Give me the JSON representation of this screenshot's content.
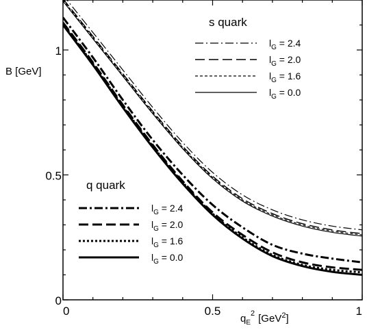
{
  "chart_data": {
    "type": "line",
    "xlabel": "q",
    "xlabel_sub": "E",
    "xlabel_sup": "2",
    "xlabel_unit_open": "[GeV",
    "xlabel_unit_sup": "2",
    "xlabel_unit_close": "]",
    "ylabel": "B [GeV]",
    "xlim": [
      0,
      1
    ],
    "ylim": [
      0,
      1.2
    ],
    "x_ticks": [
      {
        "value": 0,
        "label": "0"
      },
      {
        "value": 0.5,
        "label": "0.5"
      },
      {
        "value": 1,
        "label": "1"
      }
    ],
    "y_ticks": [
      {
        "value": 0,
        "label": "0"
      },
      {
        "value": 0.5,
        "label": "0.5"
      },
      {
        "value": 1,
        "label": "1"
      }
    ],
    "grid": false,
    "x": [
      0,
      0.1,
      0.2,
      0.3,
      0.4,
      0.5,
      0.6,
      0.7,
      0.8,
      0.9,
      1.0
    ],
    "groups": [
      {
        "title": "s quark",
        "legend_position": "top-right",
        "series": [
          {
            "label_main": "l",
            "label_sub": "G",
            "label_value": " = 2.4",
            "dash": "12 4 2 4",
            "width": 1.2,
            "values": [
              1.22,
              1.07,
              0.92,
              0.77,
              0.63,
              0.51,
              0.42,
              0.36,
              0.32,
              0.295,
              0.28
            ]
          },
          {
            "label_main": "l",
            "label_sub": "G",
            "label_value": " = 2.0",
            "dash": "14 6",
            "width": 1.4,
            "values": [
              1.205,
              1.055,
              0.905,
              0.755,
              0.615,
              0.495,
              0.405,
              0.345,
              0.305,
              0.28,
              0.265
            ]
          },
          {
            "label_main": "l",
            "label_sub": "G",
            "label_value": " = 1.6",
            "dash": "4 3",
            "width": 1.2,
            "values": [
              1.2,
              1.05,
              0.9,
              0.75,
              0.61,
              0.49,
              0.4,
              0.34,
              0.3,
              0.275,
              0.26
            ]
          },
          {
            "label_main": "l",
            "label_sub": "G",
            "label_value": " = 0.0",
            "dash": "",
            "width": 1.2,
            "values": [
              1.195,
              1.045,
              0.895,
              0.745,
              0.605,
              0.485,
              0.395,
              0.335,
              0.295,
              0.27,
              0.255
            ]
          }
        ]
      },
      {
        "title": "q quark",
        "legend_position": "bottom-left",
        "series": [
          {
            "label_main": "l",
            "label_sub": "G",
            "label_value": " = 2.4",
            "dash": "12 4 3 4",
            "width": 3,
            "values": [
              1.13,
              0.97,
              0.8,
              0.64,
              0.5,
              0.38,
              0.29,
              0.22,
              0.185,
              0.165,
              0.15
            ]
          },
          {
            "label_main": "l",
            "label_sub": "G",
            "label_value": " = 2.0",
            "dash": "14 6",
            "width": 3,
            "values": [
              1.11,
              0.95,
              0.78,
              0.62,
              0.475,
              0.35,
              0.26,
              0.19,
              0.15,
              0.13,
              0.12
            ]
          },
          {
            "label_main": "l",
            "label_sub": "G",
            "label_value": " = 1.6",
            "dash": "3 3",
            "width": 3,
            "values": [
              1.105,
              0.945,
              0.775,
              0.615,
              0.47,
              0.345,
              0.25,
              0.18,
              0.14,
              0.12,
              0.11
            ]
          },
          {
            "label_main": "l",
            "label_sub": "G",
            "label_value": " = 0.0",
            "dash": "",
            "width": 3,
            "values": [
              1.1,
              0.94,
              0.77,
              0.61,
              0.465,
              0.34,
              0.245,
              0.175,
              0.135,
              0.112,
              0.1
            ]
          }
        ]
      }
    ]
  }
}
